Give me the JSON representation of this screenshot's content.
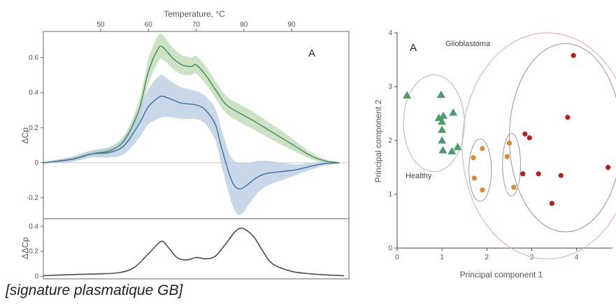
{
  "caption": "[signature plasmatique GB]",
  "colors": {
    "green_line": "#3f8a5a",
    "green_band": "#b9d8b0",
    "blue_line": "#3c6c9e",
    "blue_band": "#b6cbe2",
    "diff_line": "#4a4a4a",
    "healthy_marker": "#4f9b6a",
    "cluster2_marker": "#d98a2a",
    "glioblastoma_marker": "#b3211c",
    "healthy_ellipse": "#b5b5b5",
    "cluster2_ellipse": "#9a9a9a",
    "gb_outer_ellipse": "#e4a8a8",
    "gb_inner_ellipse": "#a48d8d"
  },
  "chart_data": [
    {
      "type": "line",
      "panel": "thermogram",
      "panel_letter": "A",
      "title": "",
      "xlabel": "Temperature, °C",
      "ylabel": "ΔCp",
      "xlim": [
        38,
        102
      ],
      "ylim": [
        -0.32,
        0.75
      ],
      "xticks": [
        50,
        60,
        70,
        80,
        90
      ],
      "yticks": [
        -0.2,
        0,
        0.2,
        0.4,
        0.6
      ],
      "ytick_labels": [
        "-0.2",
        "0",
        "0.2",
        "0.4",
        "0.6"
      ],
      "zero_line": true,
      "series": [
        {
          "color_key": "green",
          "x": [
            38,
            44,
            48,
            52,
            55,
            58,
            60,
            62,
            63,
            65,
            67,
            69,
            70,
            72,
            74,
            76,
            78,
            80,
            82,
            85,
            88,
            91,
            94,
            97,
            100
          ],
          "y": [
            0,
            0.02,
            0.05,
            0.07,
            0.13,
            0.3,
            0.52,
            0.65,
            0.66,
            0.6,
            0.56,
            0.55,
            0.56,
            0.5,
            0.42,
            0.34,
            0.3,
            0.27,
            0.24,
            0.19,
            0.14,
            0.09,
            0.04,
            0.01,
            0
          ],
          "band": [
            0.003,
            0.012,
            0.015,
            0.02,
            0.03,
            0.05,
            0.07,
            0.075,
            0.07,
            0.06,
            0.055,
            0.05,
            0.05,
            0.05,
            0.05,
            0.05,
            0.05,
            0.05,
            0.05,
            0.045,
            0.04,
            0.03,
            0.02,
            0.01,
            0.003
          ]
        },
        {
          "color_key": "blue",
          "x": [
            38,
            44,
            48,
            52,
            55,
            58,
            60,
            62,
            63,
            65,
            67,
            70,
            72,
            74,
            75,
            76,
            77,
            78,
            79,
            80,
            81,
            83,
            85,
            88,
            91,
            94,
            97,
            100
          ],
          "y": [
            0,
            0.02,
            0.05,
            0.06,
            0.1,
            0.22,
            0.32,
            0.37,
            0.38,
            0.36,
            0.34,
            0.33,
            0.3,
            0.22,
            0.12,
            0.02,
            -0.07,
            -0.13,
            -0.15,
            -0.14,
            -0.12,
            -0.08,
            -0.06,
            -0.05,
            -0.04,
            -0.02,
            -0.005,
            0
          ],
          "band": [
            0.003,
            0.015,
            0.02,
            0.03,
            0.05,
            0.08,
            0.1,
            0.12,
            0.12,
            0.1,
            0.09,
            0.08,
            0.08,
            0.09,
            0.1,
            0.11,
            0.12,
            0.14,
            0.15,
            0.14,
            0.12,
            0.09,
            0.07,
            0.05,
            0.03,
            0.02,
            0.01,
            0.003
          ]
        }
      ]
    },
    {
      "type": "line",
      "panel": "difference",
      "title": "",
      "xlabel": "",
      "ylabel": "ΔΔCp",
      "xlim": [
        38,
        102
      ],
      "ylim": [
        -0.02,
        0.46
      ],
      "yticks": [
        0,
        0.2,
        0.4
      ],
      "ytick_labels": [
        "0",
        "0.2",
        "0.4"
      ],
      "series": [
        {
          "color_key": "diff",
          "x": [
            38,
            45,
            50,
            54,
            57,
            60,
            62,
            63,
            64,
            66,
            68,
            70,
            72,
            74,
            76,
            78,
            79,
            80,
            82,
            84,
            86,
            90,
            94,
            98,
            101
          ],
          "y": [
            0.005,
            0.015,
            0.02,
            0.03,
            0.07,
            0.18,
            0.26,
            0.28,
            0.24,
            0.15,
            0.13,
            0.15,
            0.14,
            0.16,
            0.25,
            0.35,
            0.38,
            0.38,
            0.32,
            0.2,
            0.1,
            0.04,
            0.02,
            0.01,
            0.005
          ]
        }
      ]
    },
    {
      "type": "scatter",
      "panel": "pca",
      "panel_letter": "A",
      "title": "",
      "xlabel": "Principal component 1",
      "ylabel": "Principal component 2",
      "xlim": [
        0,
        4.8
      ],
      "ylim": [
        0,
        4
      ],
      "xticks": [
        0,
        1,
        2,
        3,
        4
      ],
      "yticks": [
        0,
        1,
        2,
        3,
        4
      ],
      "annotations": [
        "Glioblastoma",
        "Healthy"
      ],
      "groups": [
        {
          "label": "Healthy",
          "marker": "triangle",
          "color_key": "healthy",
          "x": [
            0.22,
            0.98,
            0.93,
            1.03,
            1.0,
            1.25,
            1.0,
            1.02,
            1.22,
            1.35,
            1.0
          ],
          "y": [
            2.84,
            2.85,
            2.42,
            2.46,
            2.2,
            2.52,
            2.0,
            1.82,
            1.8,
            1.88,
            2.35
          ]
        },
        {
          "label": "",
          "marker": "circle",
          "color_key": "cluster2",
          "x": [
            1.7,
            1.9,
            1.72,
            1.9,
            2.5,
            2.45,
            2.6
          ],
          "y": [
            1.68,
            1.85,
            1.3,
            1.08,
            1.95,
            1.7,
            1.13
          ]
        },
        {
          "label": "Glioblastoma",
          "marker": "circle",
          "color_key": "glioblastoma",
          "x": [
            2.85,
            2.95,
            2.8,
            3.15,
            3.45,
            3.65,
            3.8,
            3.93,
            4.7
          ],
          "y": [
            2.12,
            2.05,
            1.38,
            1.38,
            0.83,
            1.35,
            2.43,
            3.58,
            1.5
          ]
        }
      ],
      "ellipses": [
        {
          "color_key": "healthy",
          "cx": 0.82,
          "cy": 2.32,
          "rx": 0.68,
          "ry": 0.9,
          "angle": 0
        },
        {
          "color_key": "cluster2",
          "cx": 1.85,
          "cy": 1.45,
          "rx": 0.25,
          "ry": 0.58,
          "angle": 0
        },
        {
          "color_key": "cluster2",
          "cx": 2.55,
          "cy": 1.55,
          "rx": 0.2,
          "ry": 0.58,
          "angle": 0
        },
        {
          "color_key": "gb_outer",
          "cx": 3.35,
          "cy": 1.9,
          "rx": 1.9,
          "ry": 2.1,
          "angle": 0
        },
        {
          "color_key": "gb_inner",
          "cx": 3.75,
          "cy": 2.05,
          "rx": 1.25,
          "ry": 1.75,
          "angle": 0
        }
      ]
    }
  ]
}
